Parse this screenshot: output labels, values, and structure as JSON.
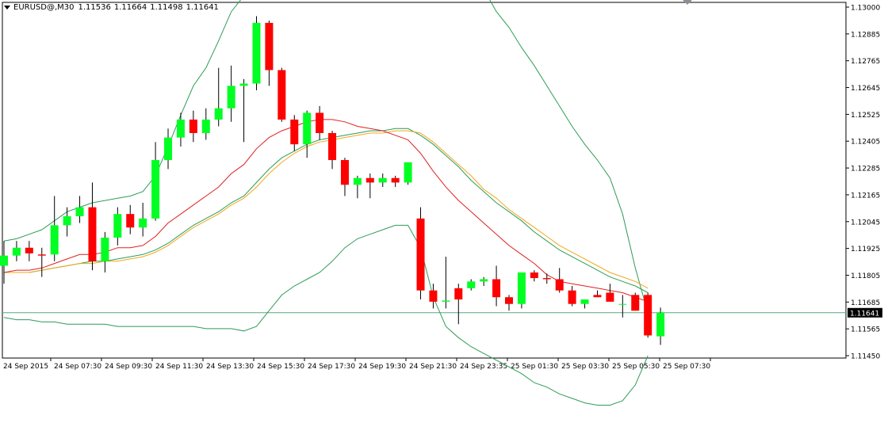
{
  "header": {
    "symbol": "EURUSD@,M30",
    "open": "1.11536",
    "high": "1.11664",
    "low": "1.11498",
    "close": "1.11641"
  },
  "chart_data": {
    "type": "candlestick",
    "title": "EURUSD@,M30",
    "ylim": [
      1.1142,
      1.13035
    ],
    "grid": false,
    "y_ticks": [
      "1.13000",
      "1.12885",
      "1.12765",
      "1.12645",
      "1.12525",
      "1.12405",
      "1.12285",
      "1.12165",
      "1.12045",
      "1.11925",
      "1.11805",
      "1.11685",
      "1.11565",
      "1.11450"
    ],
    "x_tick_labels": [
      "24 Sep 2015",
      "24 Sep 07:30",
      "24 Sep 09:30",
      "24 Sep 11:30",
      "24 Sep 13:30",
      "24 Sep 15:30",
      "24 Sep 17:30",
      "24 Sep 19:30",
      "24 Sep 21:30",
      "24 Sep 23:35",
      "25 Sep 01:30",
      "25 Sep 03:30",
      "25 Sep 05:30",
      "25 Sep 07:30"
    ],
    "current_price": "1.11641",
    "colors": {
      "bull": "#00ff22",
      "bear": "#ff0000",
      "wick": "#000000",
      "bb_outer": "#2e9c57",
      "ma_red": "#e02020",
      "ma_orange": "#f0a81c",
      "ma_green": "#2e9c57",
      "price_line": "#5aa882"
    },
    "candles": [
      {
        "o": 1.1185,
        "h": 1.1196,
        "l": 1.1177,
        "c": 1.11895
      },
      {
        "o": 1.11895,
        "h": 1.1196,
        "l": 1.1187,
        "c": 1.1193
      },
      {
        "o": 1.1193,
        "h": 1.1196,
        "l": 1.1187,
        "c": 1.11905
      },
      {
        "o": 1.119,
        "h": 1.1193,
        "l": 1.118,
        "c": 1.11895
      },
      {
        "o": 1.119,
        "h": 1.1216,
        "l": 1.1187,
        "c": 1.1203
      },
      {
        "o": 1.1203,
        "h": 1.1211,
        "l": 1.1198,
        "c": 1.1207
      },
      {
        "o": 1.1207,
        "h": 1.1216,
        "l": 1.1204,
        "c": 1.1211
      },
      {
        "o": 1.1211,
        "h": 1.1222,
        "l": 1.1183,
        "c": 1.1187
      },
      {
        "o": 1.1187,
        "h": 1.12,
        "l": 1.1182,
        "c": 1.11975
      },
      {
        "o": 1.11975,
        "h": 1.1211,
        "l": 1.1194,
        "c": 1.1208
      },
      {
        "o": 1.1208,
        "h": 1.1212,
        "l": 1.1199,
        "c": 1.1202
      },
      {
        "o": 1.1202,
        "h": 1.1213,
        "l": 1.1198,
        "c": 1.1206
      },
      {
        "o": 1.1206,
        "h": 1.124,
        "l": 1.1205,
        "c": 1.1232
      },
      {
        "o": 1.1232,
        "h": 1.1246,
        "l": 1.1228,
        "c": 1.1242
      },
      {
        "o": 1.1242,
        "h": 1.1253,
        "l": 1.1238,
        "c": 1.125
      },
      {
        "o": 1.125,
        "h": 1.1254,
        "l": 1.124,
        "c": 1.1244
      },
      {
        "o": 1.1244,
        "h": 1.1255,
        "l": 1.1241,
        "c": 1.125
      },
      {
        "o": 1.125,
        "h": 1.1273,
        "l": 1.1247,
        "c": 1.1255
      },
      {
        "o": 1.1255,
        "h": 1.1274,
        "l": 1.1249,
        "c": 1.1265
      },
      {
        "o": 1.1265,
        "h": 1.1268,
        "l": 1.124,
        "c": 1.1266
      },
      {
        "o": 1.1266,
        "h": 1.1296,
        "l": 1.1263,
        "c": 1.1293
      },
      {
        "o": 1.1293,
        "h": 1.1294,
        "l": 1.1265,
        "c": 1.1272
      },
      {
        "o": 1.1272,
        "h": 1.1273,
        "l": 1.1249,
        "c": 1.125
      },
      {
        "o": 1.125,
        "h": 1.1252,
        "l": 1.1236,
        "c": 1.1239
      },
      {
        "o": 1.1239,
        "h": 1.1254,
        "l": 1.1233,
        "c": 1.1253
      },
      {
        "o": 1.1253,
        "h": 1.1256,
        "l": 1.1241,
        "c": 1.1244
      },
      {
        "o": 1.1244,
        "h": 1.1245,
        "l": 1.1228,
        "c": 1.1232
      },
      {
        "o": 1.1232,
        "h": 1.1233,
        "l": 1.1216,
        "c": 1.1221
      },
      {
        "o": 1.1221,
        "h": 1.1225,
        "l": 1.1215,
        "c": 1.1224
      },
      {
        "o": 1.1224,
        "h": 1.1226,
        "l": 1.1215,
        "c": 1.1222
      },
      {
        "o": 1.1222,
        "h": 1.1226,
        "l": 1.122,
        "c": 1.1224
      },
      {
        "o": 1.1224,
        "h": 1.1225,
        "l": 1.122,
        "c": 1.1222
      },
      {
        "o": 1.1222,
        "h": 1.1231,
        "l": 1.1221,
        "c": 1.1231
      },
      {
        "o": 1.1206,
        "h": 1.1211,
        "l": 1.117,
        "c": 1.1174
      },
      {
        "o": 1.1174,
        "h": 1.1177,
        "l": 1.1166,
        "c": 1.1169
      },
      {
        "o": 1.1169,
        "h": 1.1189,
        "l": 1.1166,
        "c": 1.11695
      },
      {
        "o": 1.1175,
        "h": 1.1177,
        "l": 1.1159,
        "c": 1.117
      },
      {
        "o": 1.1175,
        "h": 1.1179,
        "l": 1.1174,
        "c": 1.1178
      },
      {
        "o": 1.1178,
        "h": 1.118,
        "l": 1.1176,
        "c": 1.1179
      },
      {
        "o": 1.1179,
        "h": 1.1185,
        "l": 1.1167,
        "c": 1.1171
      },
      {
        "o": 1.1171,
        "h": 1.1172,
        "l": 1.1165,
        "c": 1.1168
      },
      {
        "o": 1.1168,
        "h": 1.1182,
        "l": 1.1166,
        "c": 1.1182
      },
      {
        "o": 1.1182,
        "h": 1.1183,
        "l": 1.1178,
        "c": 1.11795
      },
      {
        "o": 1.11795,
        "h": 1.11815,
        "l": 1.1177,
        "c": 1.1179
      },
      {
        "o": 1.1179,
        "h": 1.1184,
        "l": 1.1173,
        "c": 1.1174
      },
      {
        "o": 1.1174,
        "h": 1.1176,
        "l": 1.1167,
        "c": 1.1168
      },
      {
        "o": 1.1168,
        "h": 1.117,
        "l": 1.1166,
        "c": 1.117
      },
      {
        "o": 1.1172,
        "h": 1.1174,
        "l": 1.1171,
        "c": 1.1171
      },
      {
        "o": 1.1173,
        "h": 1.1177,
        "l": 1.1169,
        "c": 1.1169
      },
      {
        "o": 1.1168,
        "h": 1.1172,
        "l": 1.1162,
        "c": 1.1168
      },
      {
        "o": 1.1172,
        "h": 1.1173,
        "l": 1.1165,
        "c": 1.1165
      },
      {
        "o": 1.1172,
        "h": 1.1173,
        "l": 1.1153,
        "c": 1.1154
      },
      {
        "o": 1.11536,
        "h": 1.11664,
        "l": 1.11498,
        "c": 1.11641
      }
    ],
    "bb_upper": [
      1.1196,
      1.1197,
      1.1199,
      1.1201,
      1.1205,
      1.1209,
      1.1211,
      1.1213,
      1.1214,
      1.1215,
      1.1216,
      1.1218,
      1.1225,
      1.1238,
      1.1252,
      1.1265,
      1.1273,
      1.1285,
      1.1298,
      1.1305,
      1.1312,
      1.1319,
      1.1323,
      1.1323,
      1.1324,
      1.1324,
      1.1324,
      1.1321,
      1.1317,
      1.1313,
      1.1312,
      1.1312,
      1.1319,
      1.1327,
      1.1331,
      1.1331,
      1.1327,
      1.1319,
      1.1308,
      1.1298,
      1.1291,
      1.1282,
      1.1274,
      1.1265,
      1.1256,
      1.1247,
      1.1239,
      1.1232,
      1.1224,
      1.1208,
      1.1184,
      1.1164,
      null
    ],
    "bb_lower": [
      1.1162,
      1.1161,
      1.1161,
      1.116,
      1.116,
      1.1159,
      1.1159,
      1.1159,
      1.1159,
      1.1158,
      1.1158,
      1.1158,
      1.1158,
      1.1158,
      1.1158,
      1.1158,
      1.1157,
      1.1157,
      1.1157,
      1.1156,
      1.1158,
      1.1165,
      1.1172,
      1.1176,
      1.1179,
      1.1182,
      1.1187,
      1.1193,
      1.1197,
      1.1199,
      1.1201,
      1.1203,
      1.1203,
      1.1193,
      1.1171,
      1.1158,
      1.1153,
      1.1149,
      1.1146,
      1.1143,
      1.114,
      1.1137,
      1.1133,
      1.1131,
      1.1128,
      1.1126,
      1.1124,
      1.1123,
      1.1123,
      1.1125,
      1.1132,
      1.1145,
      null
    ],
    "ma_red": [
      1.1182,
      1.1183,
      1.1183,
      1.1184,
      1.1186,
      1.1188,
      1.119,
      1.119,
      1.1191,
      1.1193,
      1.1193,
      1.1194,
      1.1198,
      1.1204,
      1.1208,
      1.1212,
      1.1216,
      1.122,
      1.1226,
      1.123,
      1.1237,
      1.1242,
      1.1245,
      1.1247,
      1.1249,
      1.125,
      1.125,
      1.1249,
      1.1247,
      1.1246,
      1.1245,
      1.1243,
      1.1241,
      1.1235,
      1.1227,
      1.122,
      1.1214,
      1.1209,
      1.1204,
      1.1199,
      1.1194,
      1.119,
      1.1186,
      1.1181,
      1.1178,
      1.1177,
      1.1176,
      1.1175,
      1.1174,
      1.1173,
      1.1171,
      1.1169,
      null
    ],
    "ma_orange": [
      1.1182,
      1.1182,
      1.1182,
      1.1183,
      1.1184,
      1.1185,
      1.1186,
      1.1186,
      1.1187,
      1.1187,
      1.1188,
      1.1189,
      1.1191,
      1.1194,
      1.1198,
      1.1202,
      1.1205,
      1.1208,
      1.1212,
      1.1215,
      1.122,
      1.1226,
      1.1231,
      1.1235,
      1.1238,
      1.124,
      1.1241,
      1.1242,
      1.1243,
      1.1244,
      1.1244,
      1.1245,
      1.1245,
      1.1244,
      1.124,
      1.1235,
      1.123,
      1.1225,
      1.1219,
      1.1215,
      1.121,
      1.1206,
      1.1202,
      1.1198,
      1.1194,
      1.1191,
      1.1188,
      1.1185,
      1.1182,
      1.118,
      1.1178,
      1.1175,
      null
    ],
    "ma_green": [
      1.1182,
      1.1182,
      1.1182,
      1.1183,
      1.1184,
      1.1185,
      1.1186,
      1.1187,
      1.1187,
      1.1188,
      1.1189,
      1.119,
      1.1192,
      1.1195,
      1.1199,
      1.1203,
      1.1206,
      1.1209,
      1.1213,
      1.1216,
      1.1222,
      1.1228,
      1.1233,
      1.1236,
      1.1239,
      1.1241,
      1.1242,
      1.1243,
      1.1244,
      1.1245,
      1.1245,
      1.1246,
      1.1246,
      1.1243,
      1.1239,
      1.1234,
      1.1229,
      1.1223,
      1.1218,
      1.1213,
      1.1209,
      1.1205,
      1.12,
      1.1196,
      1.1192,
      1.1189,
      1.1186,
      1.1183,
      1.118,
      1.1178,
      1.1176,
      1.1173,
      null
    ]
  }
}
